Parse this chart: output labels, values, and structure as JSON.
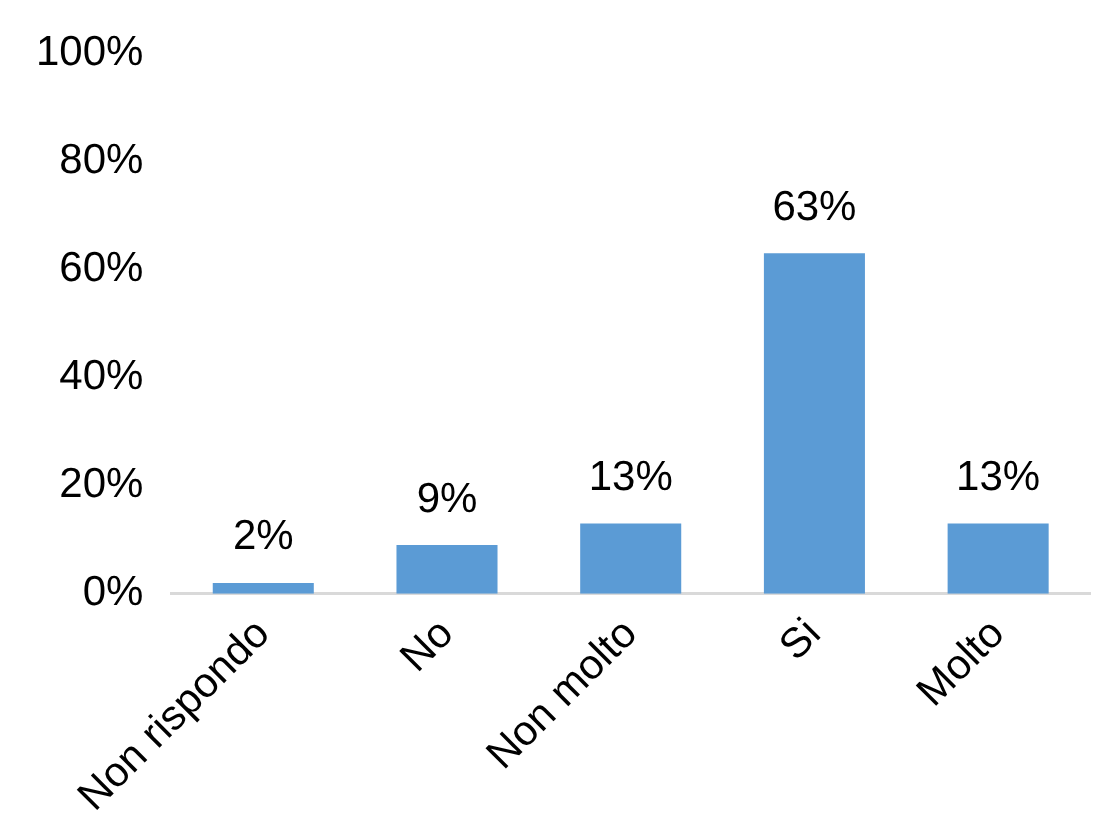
{
  "chart_data": {
    "type": "bar",
    "categories": [
      "Non rispondo",
      "No",
      "Non molto",
      "Si",
      "Molto"
    ],
    "values": [
      2,
      9,
      13,
      63,
      13
    ],
    "color": "#5b9bd5",
    "value_labels": [
      "2%",
      "9%",
      "13%",
      "63%",
      "13%"
    ],
    "ylim": [
      0,
      100
    ],
    "yticks": [
      {
        "value": 0,
        "label": "0%"
      },
      {
        "value": 20,
        "label": "20%"
      },
      {
        "value": 40,
        "label": "40%"
      },
      {
        "value": 60,
        "label": "60%"
      },
      {
        "value": 80,
        "label": "80%"
      },
      {
        "value": 100,
        "label": "100%"
      }
    ],
    "grid": false,
    "legend": false
  }
}
